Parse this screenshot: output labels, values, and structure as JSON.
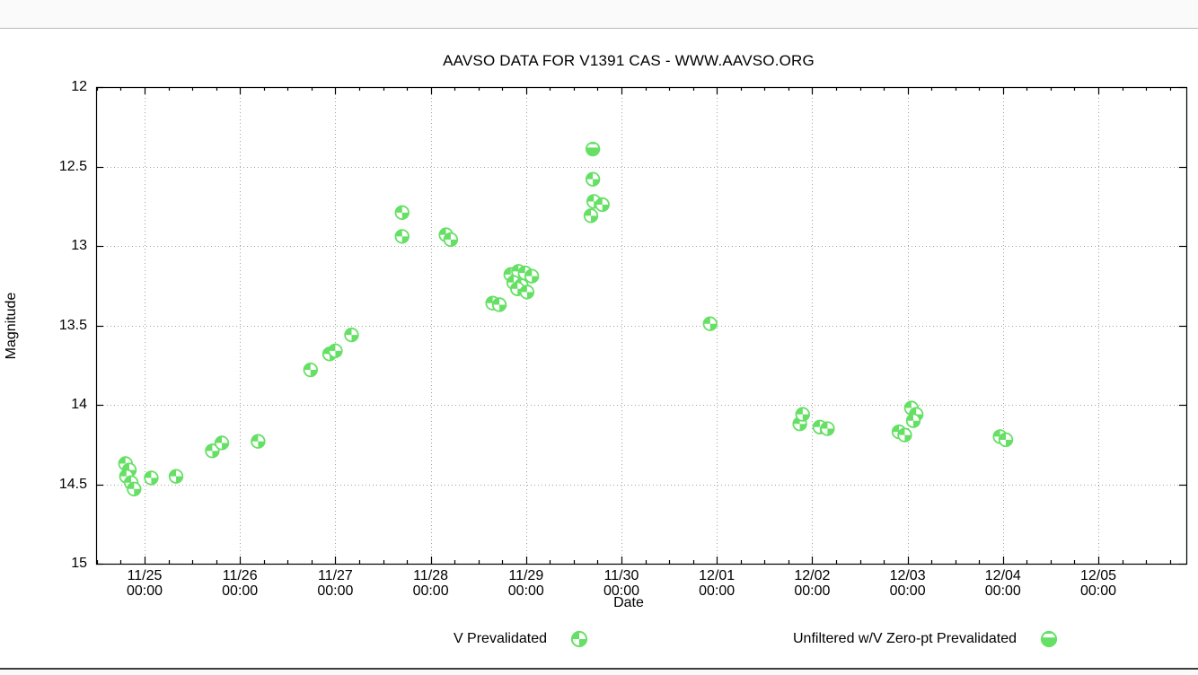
{
  "chart_data": {
    "type": "scatter",
    "title": "AAVSO DATA FOR V1391 CAS - WWW.AAVSO.ORG",
    "xlabel": "Date",
    "ylabel": "Magnitude",
    "x_axis": {
      "unit": "days since 11/25 00:00",
      "range": [
        -0.508,
        10.922
      ],
      "minor_tick_interval": 0.25,
      "grid": "dotted at each day",
      "major_ticks": [
        {
          "t": 0,
          "date": "11/25",
          "time": "00:00"
        },
        {
          "t": 1,
          "date": "11/26",
          "time": "00:00"
        },
        {
          "t": 2,
          "date": "11/27",
          "time": "00:00"
        },
        {
          "t": 3,
          "date": "11/28",
          "time": "00:00"
        },
        {
          "t": 4,
          "date": "11/29",
          "time": "00:00"
        },
        {
          "t": 5,
          "date": "11/30",
          "time": "00:00"
        },
        {
          "t": 6,
          "date": "12/01",
          "time": "00:00"
        },
        {
          "t": 7,
          "date": "12/02",
          "time": "00:00"
        },
        {
          "t": 8,
          "date": "12/03",
          "time": "00:00"
        },
        {
          "t": 9,
          "date": "12/04",
          "time": "00:00"
        },
        {
          "t": 10,
          "date": "12/05",
          "time": "00:00"
        }
      ]
    },
    "y_axis": {
      "label": "Magnitude",
      "range": [
        12,
        15
      ],
      "inverted": true,
      "major_tick_interval": 0.5,
      "tick_labels": [
        "12",
        "12.5",
        "13",
        "13.5",
        "14",
        "14.5",
        "15"
      ],
      "grid": "dotted at each 0.5 mag"
    },
    "series": [
      {
        "name": "V Prevalidated",
        "marker": "quartered-circle",
        "color": "#65e065",
        "points": [
          [
            -0.2,
            14.37
          ],
          [
            -0.16,
            14.41
          ],
          [
            -0.19,
            14.45
          ],
          [
            -0.14,
            14.49
          ],
          [
            -0.11,
            14.53
          ],
          [
            0.07,
            14.46
          ],
          [
            0.33,
            14.45
          ],
          [
            0.71,
            14.29
          ],
          [
            0.81,
            14.24
          ],
          [
            1.19,
            14.23
          ],
          [
            1.74,
            13.78
          ],
          [
            1.94,
            13.68
          ],
          [
            2.0,
            13.66
          ],
          [
            2.17,
            13.56
          ],
          [
            2.7,
            12.79
          ],
          [
            2.7,
            12.94
          ],
          [
            3.16,
            12.93
          ],
          [
            3.21,
            12.96
          ],
          [
            3.65,
            13.36
          ],
          [
            3.72,
            13.37
          ],
          [
            3.84,
            13.18
          ],
          [
            3.92,
            13.16
          ],
          [
            3.99,
            13.17
          ],
          [
            4.06,
            13.19
          ],
          [
            3.87,
            13.23
          ],
          [
            3.95,
            13.25
          ],
          [
            3.91,
            13.27
          ],
          [
            4.01,
            13.29
          ],
          [
            4.7,
            12.58
          ],
          [
            4.71,
            12.72
          ],
          [
            4.8,
            12.74
          ],
          [
            4.68,
            12.81
          ],
          [
            5.93,
            13.49
          ],
          [
            6.87,
            14.12
          ],
          [
            6.9,
            14.06
          ],
          [
            7.08,
            14.14
          ],
          [
            7.16,
            14.15
          ],
          [
            7.91,
            14.17
          ],
          [
            7.97,
            14.19
          ],
          [
            8.04,
            14.02
          ],
          [
            8.09,
            14.06
          ],
          [
            8.06,
            14.1
          ],
          [
            8.97,
            14.2
          ],
          [
            9.03,
            14.22
          ]
        ]
      },
      {
        "name": "Unfiltered w/V Zero-pt Prevalidated",
        "marker": "bottom-half-filled-circle",
        "color": "#65e065",
        "points": [
          [
            4.7,
            12.39
          ]
        ]
      }
    ]
  },
  "legend": {
    "entries": [
      {
        "label": "V Prevalidated"
      },
      {
        "label": "Unfiltered w/V Zero-pt Prevalidated"
      }
    ]
  }
}
